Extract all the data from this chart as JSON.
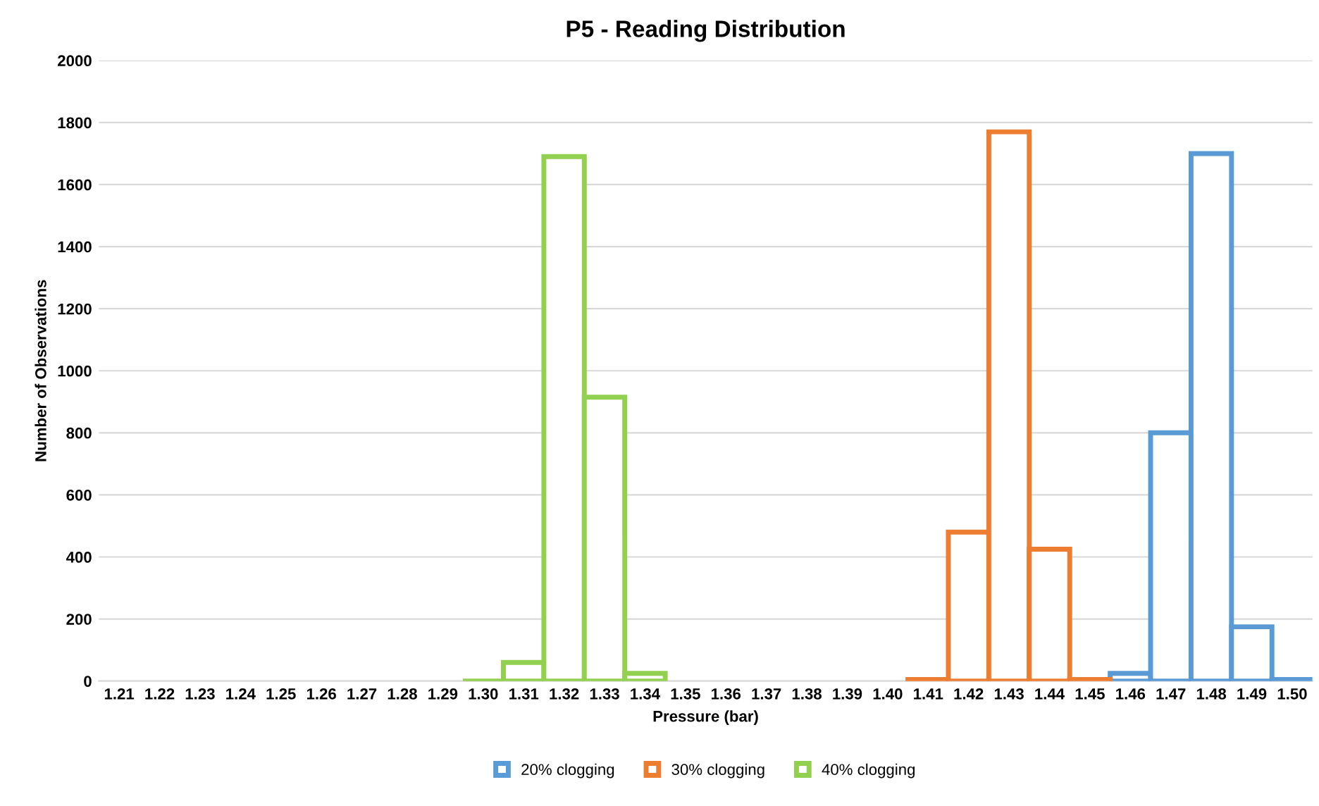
{
  "chart_data": {
    "type": "bar",
    "title": "P5 - Reading Distribution",
    "xlabel": "Pressure (bar)",
    "ylabel": "Number of Observations",
    "categories": [
      "1.21",
      "1.22",
      "1.23",
      "1.24",
      "1.25",
      "1.26",
      "1.27",
      "1.28",
      "1.29",
      "1.30",
      "1.31",
      "1.32",
      "1.33",
      "1.34",
      "1.35",
      "1.36",
      "1.37",
      "1.38",
      "1.39",
      "1.40",
      "1.41",
      "1.42",
      "1.43",
      "1.44",
      "1.45",
      "1.46",
      "1.47",
      "1.48",
      "1.49",
      "1.50"
    ],
    "series": [
      {
        "name": "20% clogging",
        "color": "#5b9bd5",
        "values": [
          null,
          null,
          null,
          null,
          null,
          null,
          null,
          null,
          null,
          null,
          null,
          null,
          null,
          null,
          null,
          null,
          null,
          null,
          null,
          null,
          null,
          null,
          null,
          null,
          null,
          25,
          800,
          1700,
          175,
          5
        ]
      },
      {
        "name": "30% clogging",
        "color": "#ed7d31",
        "values": [
          null,
          null,
          null,
          null,
          null,
          null,
          null,
          null,
          null,
          null,
          null,
          null,
          null,
          null,
          null,
          null,
          null,
          null,
          null,
          null,
          5,
          480,
          1770,
          425,
          5,
          null,
          null,
          null,
          null,
          null
        ]
      },
      {
        "name": "40% clogging",
        "color": "#92d050",
        "values": [
          null,
          null,
          null,
          null,
          null,
          null,
          null,
          null,
          null,
          0,
          60,
          1690,
          915,
          25,
          null,
          null,
          null,
          null,
          null,
          null,
          null,
          null,
          null,
          null,
          null,
          null,
          null,
          null,
          null,
          null
        ]
      }
    ],
    "ylim": [
      0,
      2000
    ],
    "yticks": [
      0,
      200,
      400,
      600,
      800,
      1000,
      1200,
      1400,
      1600,
      1800,
      2000
    ],
    "grid": "y",
    "legend": "bottom"
  }
}
